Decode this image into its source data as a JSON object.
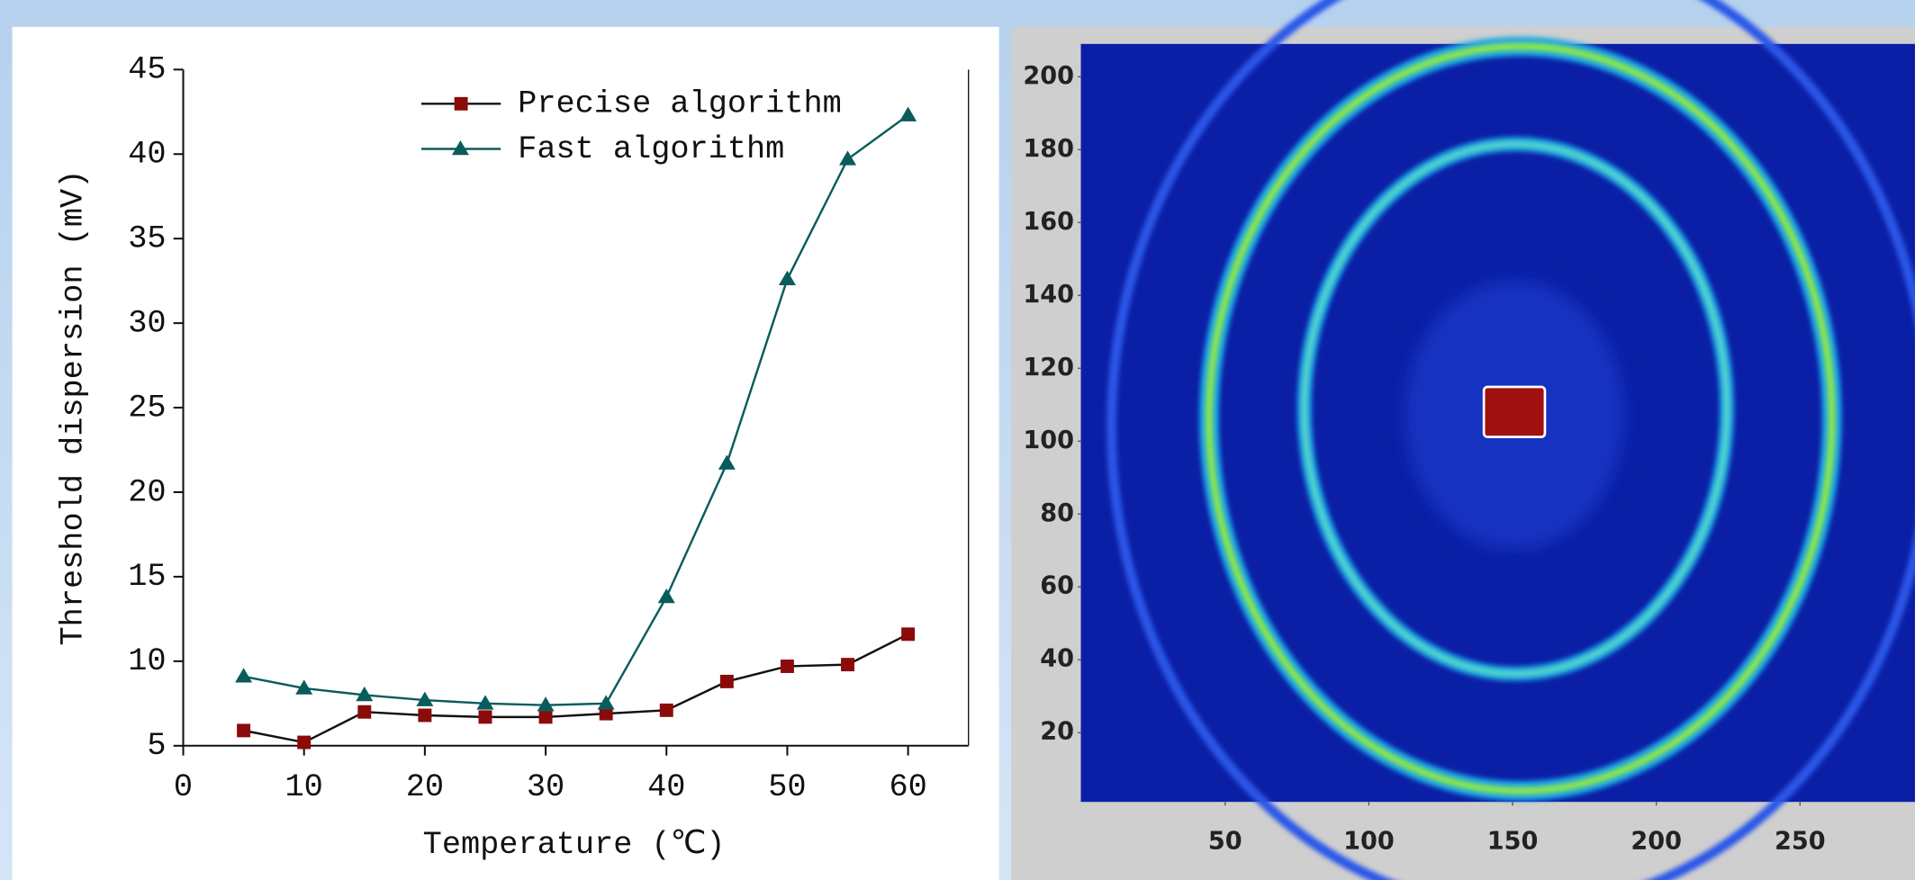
{
  "chart_data": [
    {
      "type": "line",
      "y_label": "Threshold dispersion (mV)",
      "x_label": "Temperature (℃)",
      "x": [
        5,
        10,
        15,
        20,
        25,
        30,
        35,
        40,
        45,
        50,
        55,
        60
      ],
      "series": [
        {
          "name": "Precise algorithm",
          "color": "#8b0a0a",
          "line_color": "#111111",
          "marker": "square",
          "values": [
            5.9,
            5.2,
            7.0,
            6.8,
            6.7,
            6.7,
            6.9,
            7.1,
            8.8,
            9.7,
            9.8,
            11.6
          ]
        },
        {
          "name": "Fast algorithm",
          "color": "#0a5c5c",
          "line_color": "#0a5c5c",
          "marker": "triangle",
          "values": [
            9.1,
            8.4,
            8.0,
            7.7,
            7.5,
            7.4,
            7.5,
            13.8,
            21.7,
            32.6,
            39.7,
            42.3
          ]
        }
      ],
      "xlim": [
        0,
        65
      ],
      "xticks": [
        0,
        10,
        20,
        30,
        40,
        50,
        60
      ],
      "ylim": [
        5,
        45
      ],
      "yticks": [
        5,
        10,
        15,
        20,
        25,
        30,
        35,
        40,
        45
      ],
      "grid": false,
      "legend": "top"
    },
    {
      "type": "heatmap",
      "xlim": [
        0,
        290
      ],
      "xticks": [
        50,
        100,
        150,
        200,
        250
      ],
      "ylim": [
        0,
        209
      ],
      "yticks": [
        20,
        40,
        60,
        80,
        100,
        120,
        140,
        160,
        180,
        200
      ]
    }
  ]
}
